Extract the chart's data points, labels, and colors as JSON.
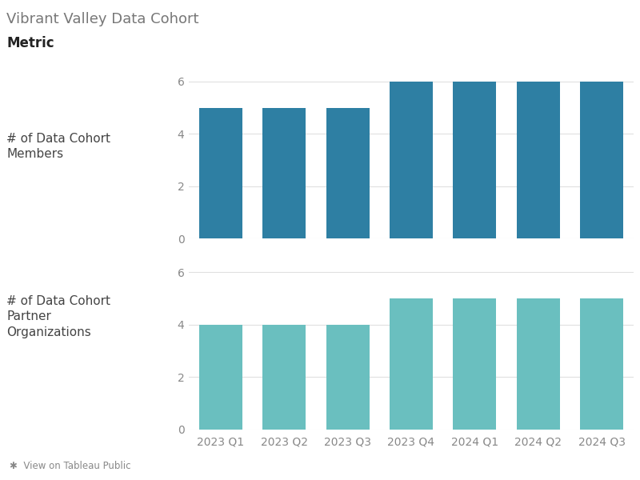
{
  "title": "Vibrant Valley Data Cohort",
  "subtitle": "Metric",
  "categories": [
    "2023 Q1",
    "2023 Q2",
    "2023 Q3",
    "2023 Q4",
    "2024 Q1",
    "2024 Q2",
    "2024 Q3"
  ],
  "members_values": [
    5,
    5,
    5,
    6,
    6,
    6,
    6
  ],
  "partners_values": [
    4,
    4,
    4,
    5,
    5,
    5,
    5
  ],
  "members_color": "#2e7fa3",
  "partners_color": "#6abfbf",
  "members_label": "# of Data Cohort\nMembers",
  "partners_label": "# of Data Cohort\nPartner\nOrganizations",
  "ylim": [
    0,
    7
  ],
  "yticks": [
    0,
    2,
    4,
    6
  ],
  "background_color": "#ffffff",
  "title_fontsize": 13,
  "subtitle_fontsize": 12,
  "tick_fontsize": 10,
  "label_fontsize": 11,
  "footer_text": "✱  View on Tableau Public",
  "grid_color": "#e0e0e0",
  "text_color": "#888888",
  "label_color": "#444444"
}
